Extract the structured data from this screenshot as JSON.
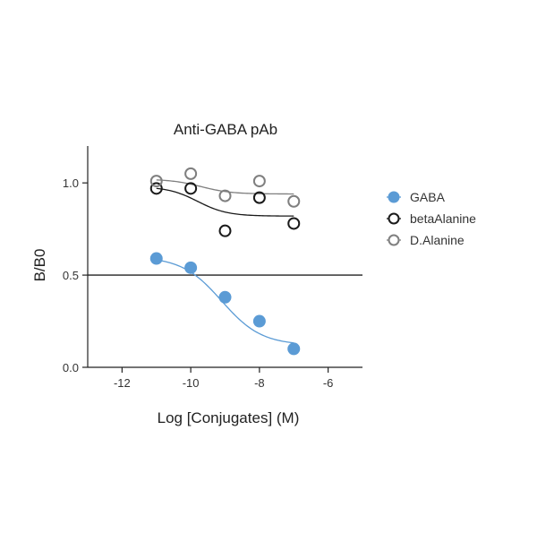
{
  "chart_data": {
    "type": "scatter",
    "title": "Anti-GABA pAb",
    "xlabel": "Log [Conjugates] (M)",
    "ylabel": "B/B0",
    "xlim": [
      -13,
      -5
    ],
    "ylim": [
      0,
      1.2
    ],
    "xticks": [
      -12,
      -10,
      -8,
      -6
    ],
    "xtick_labels": [
      "-12",
      "-10",
      "-8",
      "-6"
    ],
    "yticks": [
      0,
      0.5,
      1.0
    ],
    "ytick_labels": [
      "0.0",
      "0.5",
      "1.0"
    ],
    "reference_line": {
      "axis": "y",
      "value": 0.5
    },
    "legend_position": "right",
    "series": [
      {
        "name": "GABA",
        "marker": "filled-circle",
        "color": "#5b9bd5",
        "x": [
          -11,
          -10,
          -9,
          -8,
          -7
        ],
        "y": [
          0.59,
          0.54,
          0.38,
          0.25,
          0.1
        ],
        "fit": {
          "top": 0.6,
          "bottom": 0.12,
          "logIC50": -9.1,
          "hill": -0.75
        }
      },
      {
        "name": "betaAlanine",
        "marker": "open-circle",
        "color": "#1a1a1a",
        "x": [
          -11,
          -10,
          -9,
          -8,
          -7
        ],
        "y": [
          0.97,
          0.97,
          0.74,
          0.92,
          0.78
        ],
        "fit": {
          "top": 0.98,
          "bottom": 0.82,
          "logIC50": -9.8,
          "hill": -1
        }
      },
      {
        "name": "D.Alanine",
        "marker": "open-circle",
        "color": "#7f7f7f",
        "x": [
          -11,
          -10,
          -9,
          -8,
          -7
        ],
        "y": [
          1.01,
          1.05,
          0.93,
          1.01,
          0.9
        ],
        "fit": {
          "top": 1.02,
          "bottom": 0.94,
          "logIC50": -9.7,
          "hill": -1
        }
      }
    ]
  }
}
